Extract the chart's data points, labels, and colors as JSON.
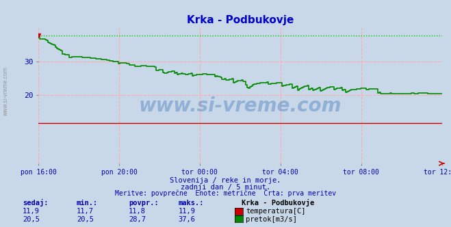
{
  "title": "Krka - Podbukovje",
  "title_color": "#0000cc",
  "bg_color": "#c8d8e8",
  "plot_bg_color": "#c8d8e8",
  "grid_color": "#ffaaaa",
  "xlabel_ticks": [
    "pon 16:00",
    "pon 20:00",
    "tor 00:00",
    "tor 04:00",
    "tor 08:00",
    "tor 12:00"
  ],
  "tick_positions_frac": [
    0.0,
    0.2,
    0.4,
    0.6,
    0.8,
    1.0
  ],
  "total_points": 289,
  "ylim": [
    0,
    40
  ],
  "yticks": [
    20,
    30
  ],
  "temp_color": "#cc0000",
  "flow_color": "#008800",
  "flow_max_dotted_color": "#00cc00",
  "temp_value": 11.9,
  "flow_min": 20.5,
  "flow_max": 37.6,
  "flow_avg": 28.7,
  "temp_min": 11.7,
  "temp_max": 11.9,
  "temp_avg": 11.8,
  "flow_sedaj": 20.5,
  "temp_sedaj": 11.9,
  "subtitle1": "Slovenija / reke in morje.",
  "subtitle2": "zadnji dan / 5 minut.",
  "subtitle3": "Meritve: povprečne  Enote: metrične  Črta: prva meritev",
  "legend_title": "Krka - Podbukovje",
  "label_temp": "temperatura[C]",
  "label_flow": "pretok[m3/s]",
  "text_color": "#0000aa",
  "watermark": "www.si-vreme.com",
  "sidebar_text": "www.si-vreme.com"
}
